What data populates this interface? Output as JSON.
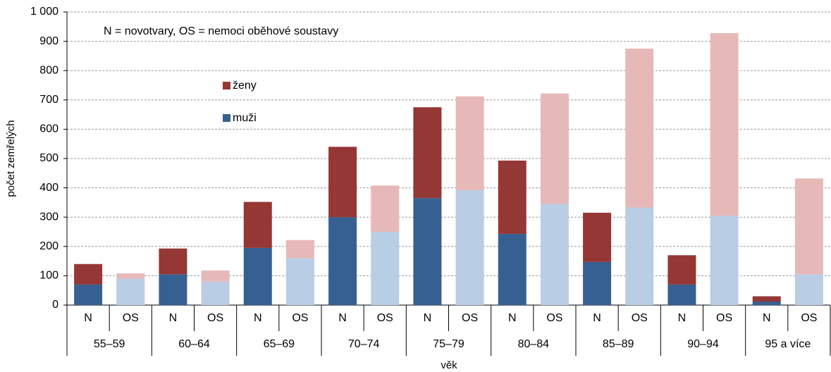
{
  "chart_data": {
    "type": "stacked-bar",
    "annotation": "N = novotvary, OS = nemoci oběhové soustavy",
    "ylabel": "počet zemřelých",
    "xlabel": "věk",
    "categories": [
      "N",
      "OS",
      "N",
      "OS",
      "N",
      "OS",
      "N",
      "OS",
      "N",
      "OS",
      "N",
      "OS",
      "N",
      "OS",
      "N",
      "OS",
      "N",
      "OS"
    ],
    "groups": [
      "55–59",
      "60–64",
      "65–69",
      "70–74",
      "75–79",
      "80–84",
      "85–89",
      "90–94",
      "95 a více"
    ],
    "series": [
      {
        "name": "muži",
        "color": "#376092",
        "os_color": "#b9cde5",
        "values": [
          70,
          90,
          105,
          80,
          195,
          160,
          300,
          250,
          365,
          392,
          243,
          345,
          147,
          333,
          70,
          305,
          12,
          105
        ]
      },
      {
        "name": "ženy",
        "color": "#953735",
        "os_color": "#e6b9b8",
        "values": [
          70,
          18,
          88,
          38,
          157,
          62,
          240,
          158,
          310,
          320,
          250,
          377,
          168,
          542,
          100,
          623,
          18,
          327
        ]
      }
    ],
    "ylim": [
      0,
      1000
    ],
    "yticks": [
      0,
      100,
      200,
      300,
      400,
      500,
      600,
      700,
      800,
      900,
      {
        "value": 1000,
        "label": "1 000"
      }
    ],
    "grid": true
  }
}
